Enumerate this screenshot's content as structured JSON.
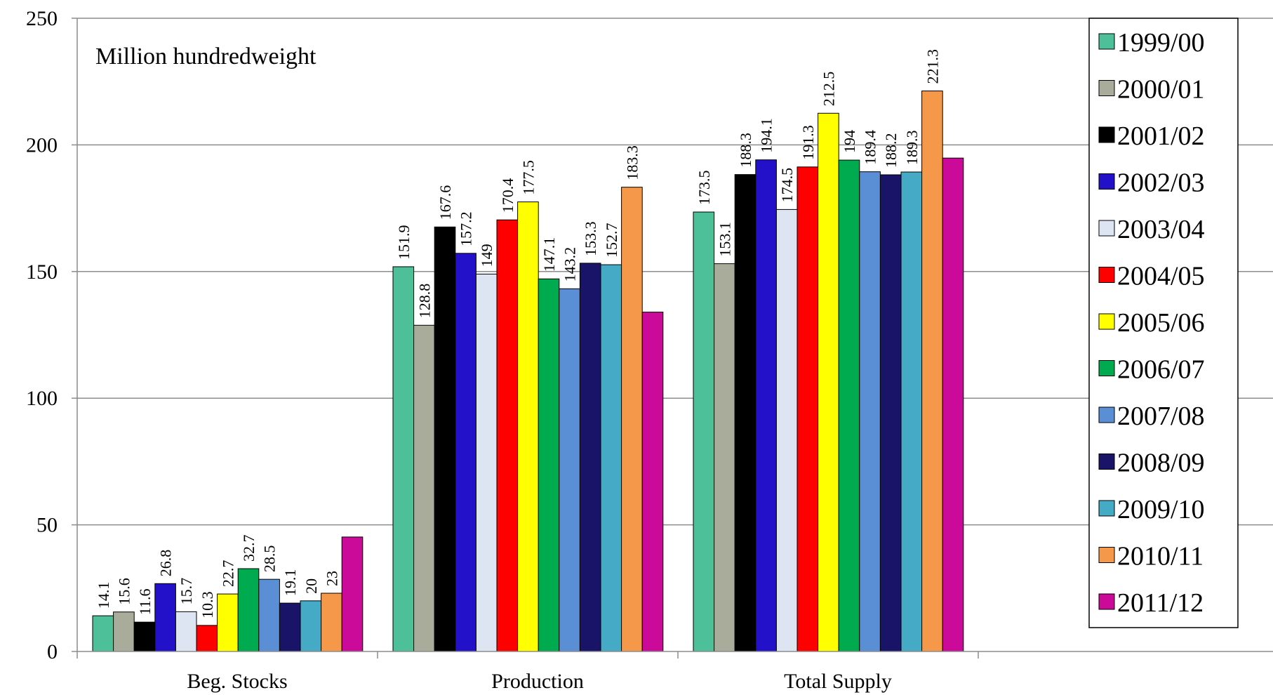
{
  "chart_data": {
    "type": "bar",
    "title": "",
    "unit_label": "Million hundredweight",
    "xlabel": "",
    "ylabel": "",
    "ylim": [
      0,
      250
    ],
    "yticks": [
      0,
      50,
      100,
      150,
      200,
      250
    ],
    "grid": true,
    "legend_position": "right",
    "categories": [
      "Beg. Stocks",
      "Production",
      "Total Supply"
    ],
    "series": [
      {
        "name": "1999/00",
        "color": "#4dbf99",
        "values": [
          14.1,
          151.9,
          173.5
        ],
        "labels": [
          "14.1",
          "151.9",
          "173.5"
        ]
      },
      {
        "name": "2000/01",
        "color": "#a9ab9b",
        "values": [
          15.6,
          128.8,
          153.1
        ],
        "labels": [
          "15.6",
          "128.8",
          "153.1"
        ]
      },
      {
        "name": "2001/02",
        "color": "#000000",
        "values": [
          11.6,
          167.6,
          188.3
        ],
        "labels": [
          "11.6",
          "167.6",
          "188.3"
        ]
      },
      {
        "name": "2002/03",
        "color": "#2211c8",
        "values": [
          26.8,
          157.2,
          194.1
        ],
        "labels": [
          "26.8",
          "157.2",
          "194.1"
        ]
      },
      {
        "name": "2003/04",
        "color": "#dde5f2",
        "values": [
          15.7,
          149,
          174.5
        ],
        "labels": [
          "15.7",
          "149",
          "174.5"
        ]
      },
      {
        "name": "2004/05",
        "color": "#ff0000",
        "values": [
          10.3,
          170.4,
          191.3
        ],
        "labels": [
          "10.3",
          "170.4",
          "191.3"
        ]
      },
      {
        "name": "2005/06",
        "color": "#ffff00",
        "values": [
          22.7,
          177.5,
          212.5
        ],
        "labels": [
          "22.7",
          "177.5",
          "212.5"
        ]
      },
      {
        "name": "2006/07",
        "color": "#00aa4e",
        "values": [
          32.7,
          147.1,
          194
        ],
        "labels": [
          "32.7",
          "147.1",
          "194"
        ]
      },
      {
        "name": "2007/08",
        "color": "#5a8fd6",
        "values": [
          28.5,
          143.2,
          189.4
        ],
        "labels": [
          "28.5",
          "143.2",
          "189.4"
        ]
      },
      {
        "name": "2008/09",
        "color": "#1a1468",
        "values": [
          19.1,
          153.3,
          188.2
        ],
        "labels": [
          "19.1",
          "153.3",
          "188.2"
        ]
      },
      {
        "name": "2009/10",
        "color": "#45aac6",
        "values": [
          20,
          152.7,
          189.3
        ],
        "labels": [
          "20",
          "152.7",
          "189.3"
        ]
      },
      {
        "name": "2010/11",
        "color": "#f6984a",
        "values": [
          23,
          183.3,
          221.3
        ],
        "labels": [
          "23",
          "183.3",
          "221.3"
        ]
      },
      {
        "name": "2011/12",
        "color": "#cc0a99",
        "values": [
          45.2,
          134,
          194.8
        ],
        "labels": [
          "",
          "",
          ""
        ]
      }
    ]
  }
}
